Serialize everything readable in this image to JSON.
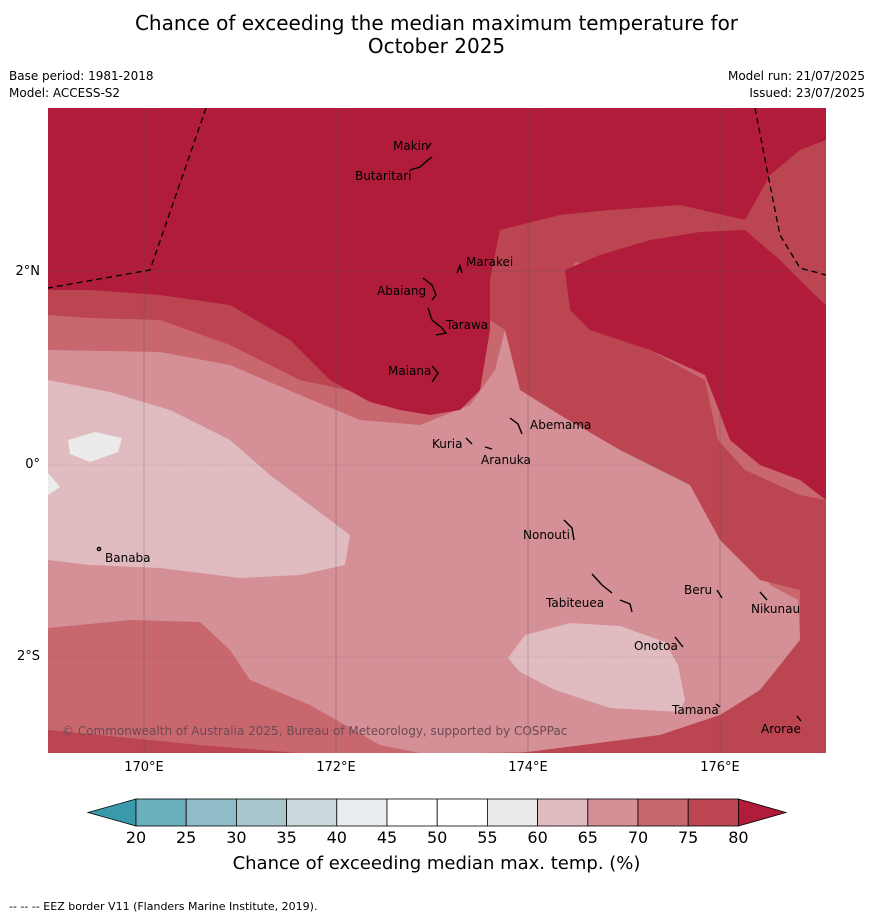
{
  "title_line1": "Chance of exceeding the median maximum temperature for",
  "title_line2": "October 2025",
  "base_period": "Base period: 1981-2018",
  "model": "Model: ACCESS-S2",
  "model_run": "Model run: 21/07/2025",
  "issued": "Issued: 23/07/2025",
  "x_ticks": [
    "170°E",
    "172°E",
    "174°E",
    "176°E"
  ],
  "y_ticks": [
    "2°N",
    "0°",
    "2°S"
  ],
  "places": {
    "makin": "Makin",
    "butaritari": "Butaritari",
    "marakei": "Marakei",
    "abaiang": "Abaiang",
    "tarawa": "Tarawa",
    "maiana": "Maiana",
    "abemama": "Abemama",
    "kuria": "Kuria",
    "aranuka": "Aranuka",
    "banaba": "Banaba",
    "nonouti": "Nonouti",
    "beru": "Beru",
    "nikunau": "Nikunau",
    "tabiteuea": "Tabiteuea",
    "onotoa": "Onotoa",
    "tamana": "Tamana",
    "arorae": "Arorae"
  },
  "copyright": "© Commonwealth of Australia 2025, Bureau of Meteorology, supported by COSPPac",
  "colorbar": {
    "labels": [
      "20",
      "25",
      "30",
      "35",
      "40",
      "45",
      "50",
      "55",
      "60",
      "65",
      "70",
      "75",
      "80"
    ],
    "title": "Chance of exceeding median max. temp. (%)",
    "colors": [
      "#3a9aab",
      "#6aafbe",
      "#8fbcc8",
      "#a9c6cd",
      "#cbd9dd",
      "#e8eef0",
      "#ffffff",
      "#ffffff",
      "#ebebeb",
      "#e0bcc0",
      "#d58f96",
      "#c9676f",
      "#bc4552",
      "#b01c3a"
    ]
  },
  "footnote": "--  --  -- EEZ border V11 (Flanders Marine Institute, 2019)."
}
